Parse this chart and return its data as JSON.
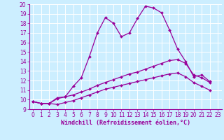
{
  "xlabel": "Windchill (Refroidissement éolien,°C)",
  "xlim": [
    -0.5,
    23.5
  ],
  "ylim": [
    9,
    20
  ],
  "xticks": [
    0,
    1,
    2,
    3,
    4,
    5,
    6,
    7,
    8,
    9,
    10,
    11,
    12,
    13,
    14,
    15,
    16,
    17,
    18,
    19,
    20,
    21,
    22,
    23
  ],
  "yticks": [
    9,
    10,
    11,
    12,
    13,
    14,
    15,
    16,
    17,
    18,
    19,
    20
  ],
  "line_color": "#990099",
  "bg_color": "#cceeff",
  "grid_color": "#ffffff",
  "line1_x": [
    0,
    1,
    2,
    3,
    4,
    5,
    6,
    7,
    8,
    9,
    10,
    11,
    12,
    13,
    14,
    15,
    16,
    17,
    18,
    19,
    20,
    21,
    22
  ],
  "line1_y": [
    9.8,
    9.6,
    9.6,
    10.2,
    10.3,
    11.4,
    12.3,
    14.5,
    17.0,
    18.6,
    18.0,
    16.6,
    17.0,
    18.5,
    19.8,
    19.6,
    19.1,
    17.3,
    15.3,
    14.0,
    12.4,
    12.6,
    11.9
  ],
  "line2_x": [
    0,
    1,
    2,
    3,
    4,
    5,
    6,
    7,
    8,
    9,
    10,
    11,
    12,
    13,
    14,
    15,
    16,
    17,
    18,
    19,
    20,
    21,
    22
  ],
  "line2_y": [
    9.8,
    9.6,
    9.6,
    10.1,
    10.3,
    10.5,
    10.8,
    11.1,
    11.5,
    11.8,
    12.1,
    12.4,
    12.7,
    12.9,
    13.2,
    13.5,
    13.8,
    14.1,
    14.2,
    13.8,
    12.6,
    12.3,
    11.8
  ],
  "line3_x": [
    0,
    1,
    2,
    3,
    4,
    5,
    6,
    7,
    8,
    9,
    10,
    11,
    12,
    13,
    14,
    15,
    16,
    17,
    18,
    19,
    20,
    21,
    22
  ],
  "line3_y": [
    9.8,
    9.6,
    9.6,
    9.5,
    9.7,
    9.9,
    10.2,
    10.5,
    10.8,
    11.1,
    11.3,
    11.5,
    11.7,
    11.9,
    12.1,
    12.3,
    12.5,
    12.7,
    12.8,
    12.4,
    11.8,
    11.4,
    11.0
  ],
  "marker": "D",
  "markersize": 2.0,
  "linewidth": 0.9,
  "tick_fontsize": 5.5,
  "xlabel_fontsize": 6.0
}
